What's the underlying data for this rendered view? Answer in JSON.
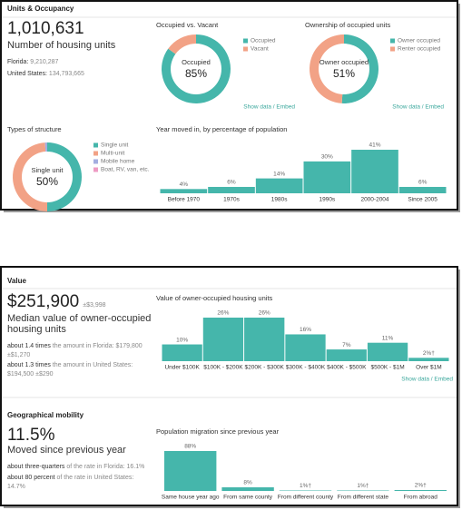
{
  "panels": [
    {
      "title": "Units & Occupancy",
      "stat": "1,010,631",
      "stat_label": "Number of housing units",
      "comparisons": [
        {
          "label": "Florida:",
          "value": "9,210,287"
        },
        {
          "label": "United States:",
          "value": "134,793,665"
        }
      ]
    },
    {
      "title": "Value",
      "stat": "$251,900",
      "stat_margin": "±$3,998",
      "stat_label": "Median value of owner-occupied housing units",
      "comparisons": [
        {
          "emphasis": "about 1.4 times",
          "text": "the amount in Florida: $179,800",
          "margin": "±$1,270"
        },
        {
          "emphasis": "about 1.3 times",
          "text": "the amount in United States: $194,500",
          "margin": "±$290"
        }
      ]
    },
    {
      "title": "Geographical mobility",
      "stat": "11.5%",
      "stat_label": "Moved since previous year",
      "comparisons": [
        {
          "emphasis": "about three-quarters",
          "text": "of the rate in Florida: 16.1%"
        },
        {
          "emphasis": "about 80 percent",
          "text": "of the rate in United States: 14.7%"
        }
      ]
    }
  ],
  "chart_data": [
    {
      "type": "pie",
      "title": "Occupied vs. Vacant",
      "categories": [
        "Occupied",
        "Vacant"
      ],
      "values": [
        85,
        15
      ],
      "colors": [
        "#45b6ab",
        "#f2a286"
      ],
      "center_label": "Occupied",
      "center_value": "85%",
      "link": "Show data / Embed"
    },
    {
      "type": "pie",
      "title": "Ownership of occupied units",
      "categories": [
        "Owner occupied",
        "Renter occupied"
      ],
      "values": [
        51,
        49
      ],
      "colors": [
        "#45b6ab",
        "#f2a286"
      ],
      "center_label": "Owner occupied",
      "center_value": "51%",
      "link": "Show data / Embed"
    },
    {
      "type": "pie",
      "title": "Types of structure",
      "categories": [
        "Single unit",
        "Multi-unit",
        "Mobile home",
        "Boat, RV, van, etc."
      ],
      "values": [
        50,
        49,
        1,
        0
      ],
      "colors": [
        "#45b6ab",
        "#f2a286",
        "#a4aee0",
        "#ee9bc3"
      ],
      "center_label": "Single unit",
      "center_value": "50%"
    },
    {
      "type": "bar",
      "title": "Year moved in, by percentage of population",
      "categories": [
        "Before 1970",
        "1970s",
        "1980s",
        "1990s",
        "2000-2004",
        "Since 2005"
      ],
      "values": [
        4,
        6,
        14,
        30,
        41,
        6
      ],
      "value_labels": [
        "4%",
        "6%",
        "14%",
        "30%",
        "41%",
        "6%"
      ],
      "color": "#45b6ab"
    },
    {
      "type": "bar",
      "title": "Value of owner-occupied housing units",
      "categories": [
        "Under $100K",
        "$100K - $200K",
        "$200K - $300K",
        "$300K - $400K",
        "$400K - $500K",
        "$500K - $1M",
        "Over $1M"
      ],
      "values": [
        10,
        26,
        26,
        16,
        7,
        11,
        2
      ],
      "value_labels": [
        "10%",
        "26%",
        "26%",
        "16%",
        "7%",
        "11%",
        "2%†"
      ],
      "color": "#45b6ab",
      "link": "Show data / Embed"
    },
    {
      "type": "bar",
      "title": "Population migration since previous year",
      "categories": [
        "Same house year ago",
        "From same county",
        "From different county",
        "From different state",
        "From abroad"
      ],
      "values": [
        88,
        8,
        1,
        1,
        2
      ],
      "value_labels": [
        "88%",
        "8%",
        "1%†",
        "1%†",
        "2%†"
      ],
      "color": "#45b6ab"
    }
  ]
}
